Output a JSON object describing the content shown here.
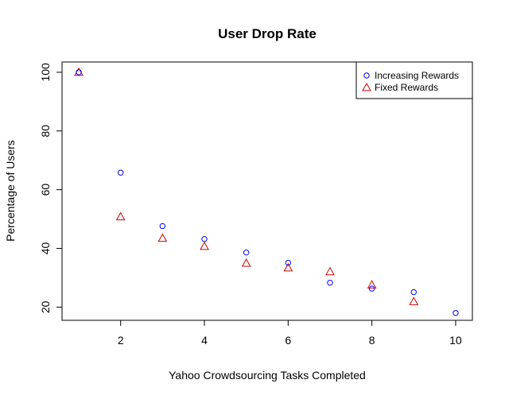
{
  "chart_data": {
    "type": "scatter",
    "title": "User Drop Rate",
    "xlabel": "Yahoo Crowdsourcing Tasks Completed",
    "ylabel": "Percentage of Users",
    "xlim": [
      0.6,
      10.4
    ],
    "ylim": [
      15.5,
      103.5
    ],
    "x_ticks": [
      2,
      4,
      6,
      8,
      10
    ],
    "y_ticks": [
      20,
      40,
      60,
      80,
      100
    ],
    "grid": false,
    "legend_position": "top-right",
    "series": [
      {
        "name": "Increasing Rewards",
        "marker": "circle",
        "color": "#0000ff",
        "x": [
          1,
          2,
          3,
          4,
          5,
          6,
          7,
          8,
          9,
          10
        ],
        "y": [
          100,
          65.8,
          47.6,
          43.2,
          38.6,
          35.1,
          28.3,
          26.3,
          25.1,
          18.0
        ]
      },
      {
        "name": "Fixed Rewards",
        "marker": "triangle",
        "color": "#cc0000",
        "x": [
          1,
          2,
          3,
          4,
          5,
          6,
          7,
          8,
          9
        ],
        "y": [
          100,
          50.8,
          43.5,
          40.7,
          35.0,
          33.4,
          32.1,
          27.6,
          21.9
        ]
      }
    ]
  }
}
